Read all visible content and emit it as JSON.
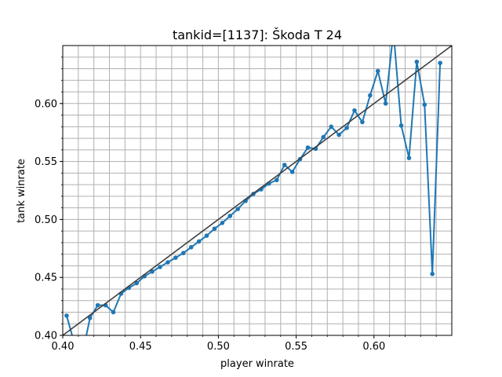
{
  "chart_data": {
    "type": "line",
    "title": "tankid=[1137]: Škoda T 24",
    "xlabel": "player winrate",
    "ylabel": "tank winrate",
    "xlim": [
      0.4,
      0.65
    ],
    "ylim": [
      0.4,
      0.65
    ],
    "grid": true,
    "minor_grid": true,
    "x_ticks": [
      0.4,
      0.45,
      0.5,
      0.55,
      0.6
    ],
    "x_tick_labels": [
      "0.40",
      "0.45",
      "0.50",
      "0.55",
      "0.60"
    ],
    "y_ticks": [
      0.4,
      0.45,
      0.5,
      0.55,
      0.6
    ],
    "y_tick_labels": [
      "0.40",
      "0.45",
      "0.50",
      "0.55",
      "0.60"
    ],
    "series": [
      {
        "color": "#1f77b4",
        "marker": "circle",
        "x": [
          0.4025,
          0.4075,
          0.4125,
          0.4175,
          0.4225,
          0.4275,
          0.4325,
          0.4375,
          0.4425,
          0.4475,
          0.4525,
          0.4575,
          0.4625,
          0.4675,
          0.4725,
          0.4775,
          0.4825,
          0.4875,
          0.4925,
          0.4975,
          0.5025,
          0.5075,
          0.5125,
          0.5175,
          0.5225,
          0.5275,
          0.5325,
          0.5375,
          0.5425,
          0.5475,
          0.5525,
          0.5575,
          0.5625,
          0.5675,
          0.5725,
          0.5775,
          0.5825,
          0.5875,
          0.5925,
          0.5975,
          0.6025,
          0.6075,
          0.6125,
          0.6175,
          0.6225,
          0.6275,
          0.6325,
          0.6375,
          0.6425
        ],
        "y": [
          0.417,
          0.393,
          0.383,
          0.415,
          0.426,
          0.426,
          0.42,
          0.436,
          0.441,
          0.445,
          0.451,
          0.455,
          0.459,
          0.463,
          0.467,
          0.471,
          0.476,
          0.481,
          0.486,
          0.492,
          0.497,
          0.503,
          0.509,
          0.516,
          0.522,
          0.526,
          0.531,
          0.534,
          0.547,
          0.541,
          0.552,
          0.562,
          0.561,
          0.571,
          0.58,
          0.573,
          0.579,
          0.594,
          0.584,
          0.607,
          0.628,
          0.6,
          0.662,
          0.581,
          0.553,
          0.636,
          0.599,
          0.453,
          0.635
        ]
      },
      {
        "color": "#404040",
        "marker": "none",
        "x": [
          0.4,
          0.65
        ],
        "y": [
          0.4,
          0.65
        ]
      }
    ]
  }
}
